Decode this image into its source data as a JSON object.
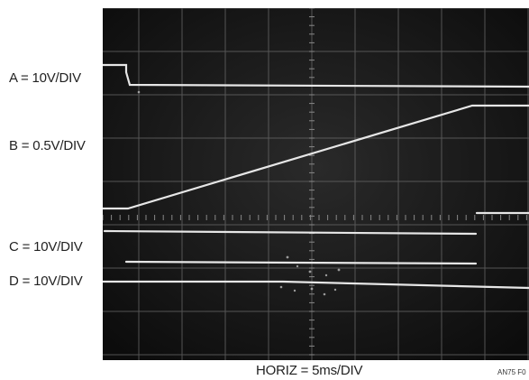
{
  "channels": [
    {
      "label": "A = 10V/DIV"
    },
    {
      "label": "B = 0.5V/DIV"
    },
    {
      "label": "C = 10V/DIV"
    },
    {
      "label": "D = 10V/DIV"
    }
  ],
  "horizontal_label": "HORIZ = 5ms/DIV",
  "figure_id": "AN75 F0",
  "colors": {
    "screen": "#141414",
    "grid": "#6a6a6a",
    "trace": "#e6e6e6"
  }
}
